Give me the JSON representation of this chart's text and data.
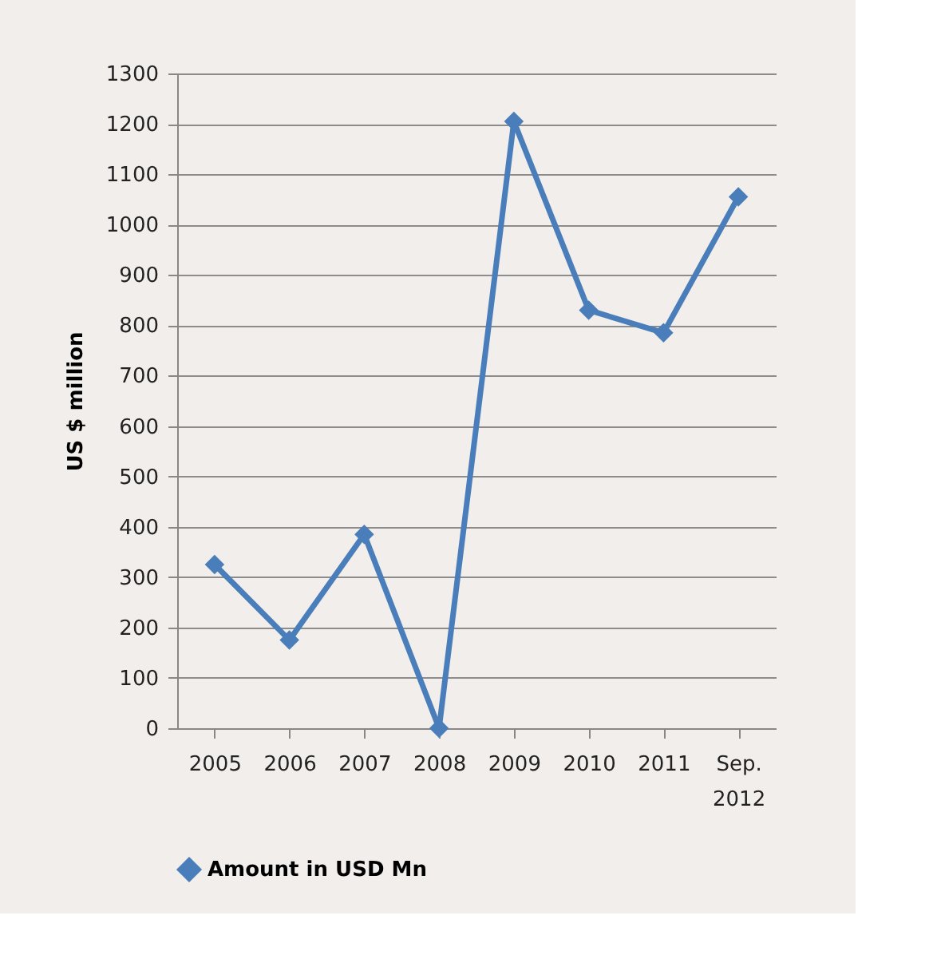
{
  "chart_data": {
    "type": "line",
    "ylabel": "US $ million",
    "categories": [
      "2005",
      "2006",
      "2007",
      "2008",
      "2009",
      "2010",
      "2011",
      "Sep. 2012"
    ],
    "series": [
      {
        "name": "Amount in USD Mn",
        "color": "#4a7ebb",
        "values": [
          325,
          175,
          385,
          0,
          1205,
          830,
          785,
          1055
        ]
      }
    ],
    "ylim": [
      0,
      1300
    ],
    "yticks": [
      0,
      100,
      200,
      300,
      400,
      500,
      600,
      700,
      800,
      900,
      1000,
      1100,
      1200,
      1300
    ],
    "grid": "y",
    "legend": "bottom",
    "marker": "diamond",
    "line_style": "solid"
  }
}
